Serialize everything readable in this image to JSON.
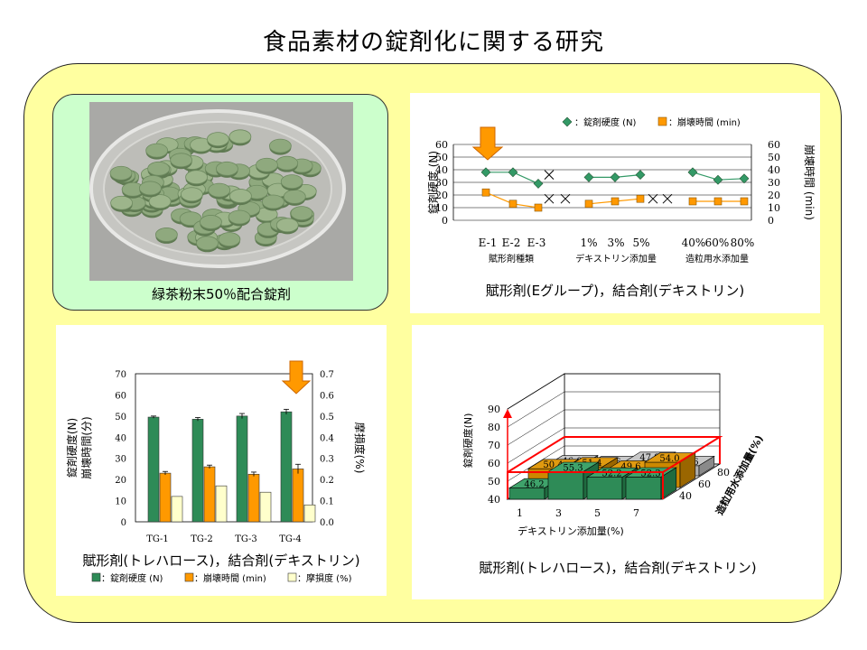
{
  "title": "食品素材の錠剤化に関する研究",
  "photo": {
    "caption": "緑茶粉末50％配合錠剤"
  },
  "chart1": {
    "caption": "賦形剤(Eグループ)，結合剤(デキストリン)",
    "legend": [
      "：錠剤硬度 (N)",
      "：崩壊時間 (min)"
    ],
    "ylabel_left": "錠剤硬度 (N)",
    "ylabel_right": "崩壊時間 (min)",
    "group_labels": [
      "賦形剤種類",
      "デキストリン添加量",
      "造粒用水添加量"
    ],
    "colors": {
      "hardness": "#339966",
      "disintegration": "#ff9900"
    }
  },
  "chart2": {
    "caption": "賦形剤(トレハロース)，結合剤(デキストリン)",
    "ylabel_left": "錠剤硬度(N)\n崩壊時間(分)",
    "ylabel_right": "摩損度(%)",
    "legend": [
      "：錠剤硬度 (N)",
      "：崩壊時間 (min)",
      "：摩損度 (%)"
    ],
    "colors": {
      "hardness": "#2e8b57",
      "disintegration": "#ff9900",
      "friability": "#ffffcc"
    }
  },
  "chart3": {
    "caption": "賦形剤(トレハロース)，結合剤(デキストリン)",
    "ylabel": "錠剤硬度(N)",
    "xlabel": "デキストリン添加量(%)",
    "zlabel": "造粒用水添加量(%)"
  },
  "chart_data": [
    {
      "type": "line",
      "categories": [
        "E-1",
        "E-2",
        "E-3",
        "",
        "1%",
        "3%",
        "5%",
        "",
        "40%",
        "60%",
        "80%"
      ],
      "ylim": [
        0,
        60
      ],
      "y2lim": [
        0,
        60
      ],
      "yticks": [
        0,
        10,
        20,
        30,
        40,
        50,
        60
      ],
      "series": [
        {
          "name": "錠剤硬度 (N)",
          "axis": "left",
          "segments": [
            {
              "x": [
                0,
                1,
                2
              ],
              "y": [
                38,
                38,
                29
              ]
            },
            {
              "x": [
                4,
                5,
                6
              ],
              "y": [
                34,
                34,
                36
              ]
            },
            {
              "x": [
                8,
                9,
                10
              ],
              "y": [
                38,
                32,
                33
              ]
            }
          ]
        },
        {
          "name": "崩壊時間 (min)",
          "axis": "right",
          "segments": [
            {
              "x": [
                0,
                1,
                2
              ],
              "y": [
                22,
                13,
                10
              ]
            },
            {
              "x": [
                4,
                5,
                6
              ],
              "y": [
                13,
                15,
                17
              ]
            },
            {
              "x": [
                8,
                9,
                10
              ],
              "y": [
                15,
                15,
                15
              ]
            }
          ]
        },
        {
          "name": "",
          "marker": "x",
          "points": [
            {
              "x": 3,
              "y": 36
            },
            {
              "x": 3,
              "y": 17
            },
            {
              "x": 3.6,
              "y": 17
            },
            {
              "x": 7,
              "y": 17
            },
            {
              "x": 7.6,
              "y": 17
            }
          ]
        }
      ],
      "annotation": {
        "type": "arrow",
        "x": 0
      }
    },
    {
      "type": "bar",
      "categories": [
        "TG-1",
        "TG-2",
        "TG-3",
        "TG-4"
      ],
      "ylim": [
        0,
        70
      ],
      "y2lim": [
        0,
        0.7
      ],
      "yticks": [
        0,
        10,
        20,
        30,
        40,
        50,
        60,
        70
      ],
      "y2ticks": [
        "0.0",
        "0.1",
        "0.2",
        "0.3",
        "0.4",
        "0.5",
        "0.6",
        "0.7"
      ],
      "series": [
        {
          "name": "錠剤硬度 (N)",
          "values": [
            49.5,
            48.5,
            50,
            52
          ],
          "errors": [
            0.5,
            0.8,
            1.2,
            1.2
          ]
        },
        {
          "name": "崩壊時間 (min)",
          "values": [
            23,
            26,
            22.5,
            25
          ],
          "errors": [
            0.8,
            0.8,
            1.0,
            2.2
          ]
        },
        {
          "name": "摩損度 (%)",
          "axis": "right",
          "values": [
            0.12,
            0.17,
            0.14,
            0.08
          ]
        }
      ],
      "annotation": {
        "type": "arrow",
        "category": "TG-4"
      }
    },
    {
      "type": "bar",
      "subtype": "3d",
      "x": [
        "1",
        "3",
        "5",
        "7"
      ],
      "z": [
        "40",
        "60",
        "80"
      ],
      "zlim": [
        40,
        90
      ],
      "yticks": [
        40,
        50,
        60,
        70,
        80,
        90
      ],
      "values": [
        {
          "x": "1",
          "z": "40",
          "value": 46.2
        },
        {
          "x": "3",
          "z": "40",
          "value": 55.3
        },
        {
          "x": "5",
          "z": "40",
          "value": 52.2
        },
        {
          "x": "7",
          "z": "40",
          "value": 52.3
        },
        {
          "x": "1",
          "z": "60",
          "value": 50.4
        },
        {
          "x": "3",
          "z": "60",
          "value": 51.4
        },
        {
          "x": "5",
          "z": "60",
          "value": 49.6
        },
        {
          "x": "7",
          "z": "60",
          "value": 54.0
        },
        {
          "x": "1",
          "z": "80",
          "value": 46.0
        },
        {
          "x": "3",
          "z": "80",
          "value": 45.6
        },
        {
          "x": "5",
          "z": "80",
          "value": 47.9
        },
        {
          "x": "7",
          "z": "80",
          "value": 45.6
        }
      ],
      "row_colors": {
        "40": "#2e8b57",
        "60": "#cc8800",
        "80": "#b0b0b0"
      }
    }
  ]
}
